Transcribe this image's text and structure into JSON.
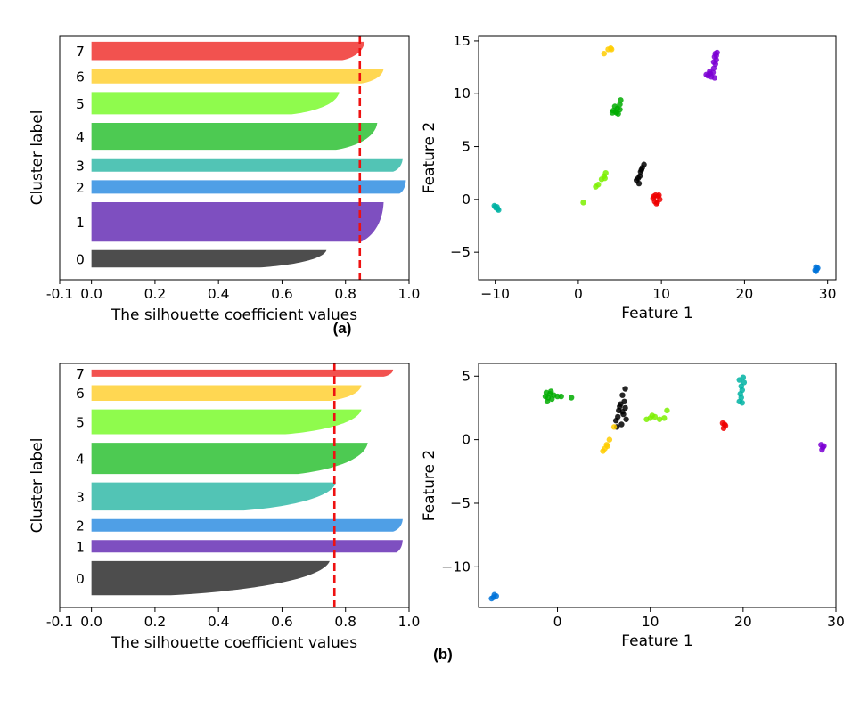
{
  "chart_data": [
    {
      "type": "silhouette",
      "panel": "(a)",
      "xlabel": "The silhouette coefficient values",
      "ylabel": "Cluster label",
      "xlim": [
        -0.1,
        1.0
      ],
      "xticks": [
        "-0.1",
        "0.0",
        "0.2",
        "0.4",
        "0.6",
        "0.8",
        "1.0"
      ],
      "average_silhouette": 0.845,
      "clusters": [
        {
          "label": "0",
          "size": 0.082,
          "max": 0.74,
          "min": 0.53,
          "color": "#4d4d4d"
        },
        {
          "label": "1",
          "size": 0.186,
          "max": 0.92,
          "min": 0.85,
          "color": "#7e4fc0"
        },
        {
          "label": "2",
          "size": 0.063,
          "max": 0.99,
          "min": 0.97,
          "color": "#4f9fe6"
        },
        {
          "label": "3",
          "size": 0.063,
          "max": 0.98,
          "min": 0.95,
          "color": "#52c4b5"
        },
        {
          "label": "4",
          "size": 0.127,
          "max": 0.9,
          "min": 0.77,
          "color": "#4dca52"
        },
        {
          "label": "5",
          "size": 0.105,
          "max": 0.78,
          "min": 0.63,
          "color": "#8ffb4d"
        },
        {
          "label": "6",
          "size": 0.07,
          "max": 0.92,
          "min": 0.85,
          "color": "#ffd752"
        },
        {
          "label": "7",
          "size": 0.087,
          "max": 0.86,
          "min": 0.79,
          "color": "#f2524f"
        }
      ]
    },
    {
      "type": "scatter",
      "panel": "(a)",
      "xlabel": "Feature 1",
      "ylabel": "Feature 2",
      "xlim": [
        -12,
        31
      ],
      "ylim": [
        -7.6,
        15.5
      ],
      "xticks": [
        -10,
        0,
        10,
        20,
        30
      ],
      "yticks": [
        -5,
        0,
        5,
        10,
        15
      ],
      "clusters": [
        {
          "color": "#000000",
          "points": [
            [
              7.9,
              3.3
            ],
            [
              7.7,
              3.0
            ],
            [
              7.5,
              2.6
            ],
            [
              7.2,
              2.0
            ],
            [
              7.0,
              1.8
            ],
            [
              7.3,
              1.5
            ],
            [
              7.4,
              2.2
            ],
            [
              7.6,
              2.8
            ]
          ]
        },
        {
          "color": "#7b00d4",
          "points": [
            [
              16.5,
              13.8
            ],
            [
              16.7,
              13.9
            ],
            [
              16.4,
              13.5
            ],
            [
              16.6,
              13.2
            ],
            [
              16.5,
              12.8
            ],
            [
              16.3,
              12.4
            ],
            [
              16.2,
              12.0
            ],
            [
              15.8,
              12.1
            ],
            [
              15.6,
              11.7
            ],
            [
              16.0,
              11.6
            ],
            [
              16.4,
              11.5
            ],
            [
              15.4,
              11.8
            ],
            [
              16.6,
              13.6
            ],
            [
              16.3,
              13.0
            ],
            [
              15.9,
              11.9
            ]
          ]
        },
        {
          "color": "#0073d9",
          "points": [
            [
              28.6,
              -6.4
            ],
            [
              28.7,
              -6.6
            ],
            [
              28.5,
              -6.7
            ],
            [
              28.8,
              -6.5
            ],
            [
              28.6,
              -6.8
            ]
          ]
        },
        {
          "color": "#00b3a3",
          "points": [
            [
              -10.1,
              -0.6
            ],
            [
              -9.9,
              -0.8
            ],
            [
              -9.7,
              -0.9
            ],
            [
              -9.8,
              -0.7
            ],
            [
              -9.6,
              -1.0
            ],
            [
              -10.0,
              -0.7
            ]
          ]
        },
        {
          "color": "#00ab00",
          "points": [
            [
              5.1,
              9.4
            ],
            [
              5.0,
              9.0
            ],
            [
              4.7,
              8.6
            ],
            [
              4.5,
              8.3
            ],
            [
              4.2,
              8.4
            ],
            [
              4.8,
              8.1
            ],
            [
              4.4,
              8.8
            ],
            [
              4.6,
              8.2
            ],
            [
              5.0,
              8.5
            ],
            [
              4.1,
              8.2
            ]
          ]
        },
        {
          "color": "#7df000",
          "points": [
            [
              3.3,
              2.5
            ],
            [
              3.1,
              2.2
            ],
            [
              2.8,
              1.9
            ],
            [
              2.4,
              1.4
            ],
            [
              2.1,
              1.2
            ],
            [
              0.6,
              -0.3
            ],
            [
              3.2,
              2.0
            ]
          ]
        },
        {
          "color": "#ffcc00",
          "points": [
            [
              3.9,
              14.3
            ],
            [
              3.6,
              14.2
            ],
            [
              3.1,
              13.8
            ],
            [
              4.0,
              14.2
            ]
          ]
        },
        {
          "color": "#ee0000",
          "points": [
            [
              9.3,
              0.4
            ],
            [
              9.6,
              0.3
            ],
            [
              9.8,
              0.0
            ],
            [
              9.2,
              -0.2
            ],
            [
              9.5,
              -0.3
            ],
            [
              9.0,
              0.1
            ],
            [
              9.7,
              0.4
            ],
            [
              9.4,
              -0.4
            ],
            [
              9.1,
              0.3
            ]
          ]
        }
      ]
    },
    {
      "type": "silhouette",
      "panel": "(b)",
      "xlabel": "The silhouette coefficient values",
      "ylabel": "Cluster label",
      "xlim": [
        -0.1,
        1.0
      ],
      "xticks": [
        "-0.1",
        "0.0",
        "0.2",
        "0.4",
        "0.6",
        "0.8",
        "1.0"
      ],
      "average_silhouette": 0.765,
      "clusters": [
        {
          "label": "0",
          "size": 0.143,
          "max": 0.75,
          "min": 0.25,
          "color": "#4d4d4d"
        },
        {
          "label": "1",
          "size": 0.052,
          "max": 0.98,
          "min": 0.96,
          "color": "#7e4fc0"
        },
        {
          "label": "2",
          "size": 0.052,
          "max": 0.98,
          "min": 0.95,
          "color": "#4f9fe6"
        },
        {
          "label": "3",
          "size": 0.117,
          "max": 0.77,
          "min": 0.48,
          "color": "#52c4b5"
        },
        {
          "label": "4",
          "size": 0.13,
          "max": 0.87,
          "min": 0.65,
          "color": "#4dca52"
        },
        {
          "label": "5",
          "size": 0.104,
          "max": 0.85,
          "min": 0.61,
          "color": "#8ffb4d"
        },
        {
          "label": "6",
          "size": 0.065,
          "max": 0.85,
          "min": 0.75,
          "color": "#ffd752"
        },
        {
          "label": "7",
          "size": 0.03,
          "max": 0.95,
          "min": 0.92,
          "color": "#f2524f"
        }
      ]
    },
    {
      "type": "scatter",
      "panel": "(b)",
      "xlabel": "Feature 1",
      "ylabel": "Feature 2",
      "xlim": [
        -8.5,
        30
      ],
      "ylim": [
        -13.2,
        6
      ],
      "xticks": [
        0,
        10,
        20,
        30
      ],
      "yticks": [
        5,
        0,
        -5,
        -10
      ],
      "clusters": [
        {
          "color": "#000000",
          "points": [
            [
              7.3,
              4.0
            ],
            [
              7.0,
              3.5
            ],
            [
              7.2,
              3.0
            ],
            [
              6.8,
              2.8
            ],
            [
              7.3,
              2.5
            ],
            [
              6.6,
              2.3
            ],
            [
              7.1,
              2.0
            ],
            [
              6.5,
              1.8
            ],
            [
              7.4,
              1.6
            ],
            [
              6.3,
              1.5
            ],
            [
              6.9,
              1.2
            ],
            [
              6.4,
              1.0
            ],
            [
              7.0,
              2.2
            ],
            [
              6.7,
              2.6
            ]
          ]
        },
        {
          "color": "#7b00d4",
          "points": [
            [
              28.4,
              -0.4
            ],
            [
              28.6,
              -0.6
            ],
            [
              28.5,
              -0.8
            ],
            [
              28.7,
              -0.5
            ]
          ]
        },
        {
          "color": "#0073d9",
          "points": [
            [
              -6.8,
              -12.2
            ],
            [
              -7.1,
              -12.5
            ],
            [
              -6.6,
              -12.3
            ],
            [
              -6.9,
              -12.4
            ]
          ]
        },
        {
          "color": "#00b3a3",
          "points": [
            [
              20.0,
              4.9
            ],
            [
              19.6,
              4.7
            ],
            [
              20.1,
              4.5
            ],
            [
              19.8,
              4.2
            ],
            [
              19.9,
              3.9
            ],
            [
              19.7,
              3.6
            ],
            [
              19.8,
              3.3
            ],
            [
              19.6,
              3.0
            ],
            [
              19.9,
              2.9
            ]
          ]
        },
        {
          "color": "#00ab00",
          "points": [
            [
              -1.2,
              3.7
            ],
            [
              -0.8,
              3.6
            ],
            [
              -1.0,
              3.3
            ],
            [
              -0.6,
              3.2
            ],
            [
              -1.3,
              3.4
            ],
            [
              -0.4,
              3.5
            ],
            [
              0.0,
              3.4
            ],
            [
              0.4,
              3.4
            ],
            [
              1.5,
              3.3
            ],
            [
              -1.1,
              3.0
            ],
            [
              -0.7,
              3.8
            ]
          ]
        },
        {
          "color": "#7df000",
          "points": [
            [
              9.6,
              1.6
            ],
            [
              10.0,
              1.7
            ],
            [
              10.5,
              1.8
            ],
            [
              11.0,
              1.6
            ],
            [
              11.5,
              1.7
            ],
            [
              11.8,
              2.3
            ],
            [
              10.2,
              1.9
            ]
          ]
        },
        {
          "color": "#ffcc00",
          "points": [
            [
              5.6,
              0.0
            ],
            [
              5.3,
              -0.4
            ],
            [
              5.1,
              -0.7
            ],
            [
              4.9,
              -0.9
            ],
            [
              5.4,
              -0.5
            ],
            [
              6.1,
              1.0
            ]
          ]
        },
        {
          "color": "#ee0000",
          "points": [
            [
              17.8,
              1.3
            ],
            [
              18.1,
              1.1
            ],
            [
              17.9,
              0.9
            ],
            [
              18.0,
              1.2
            ]
          ]
        }
      ]
    }
  ],
  "panel_labels": {
    "a": "(a)",
    "b": "(b)"
  }
}
